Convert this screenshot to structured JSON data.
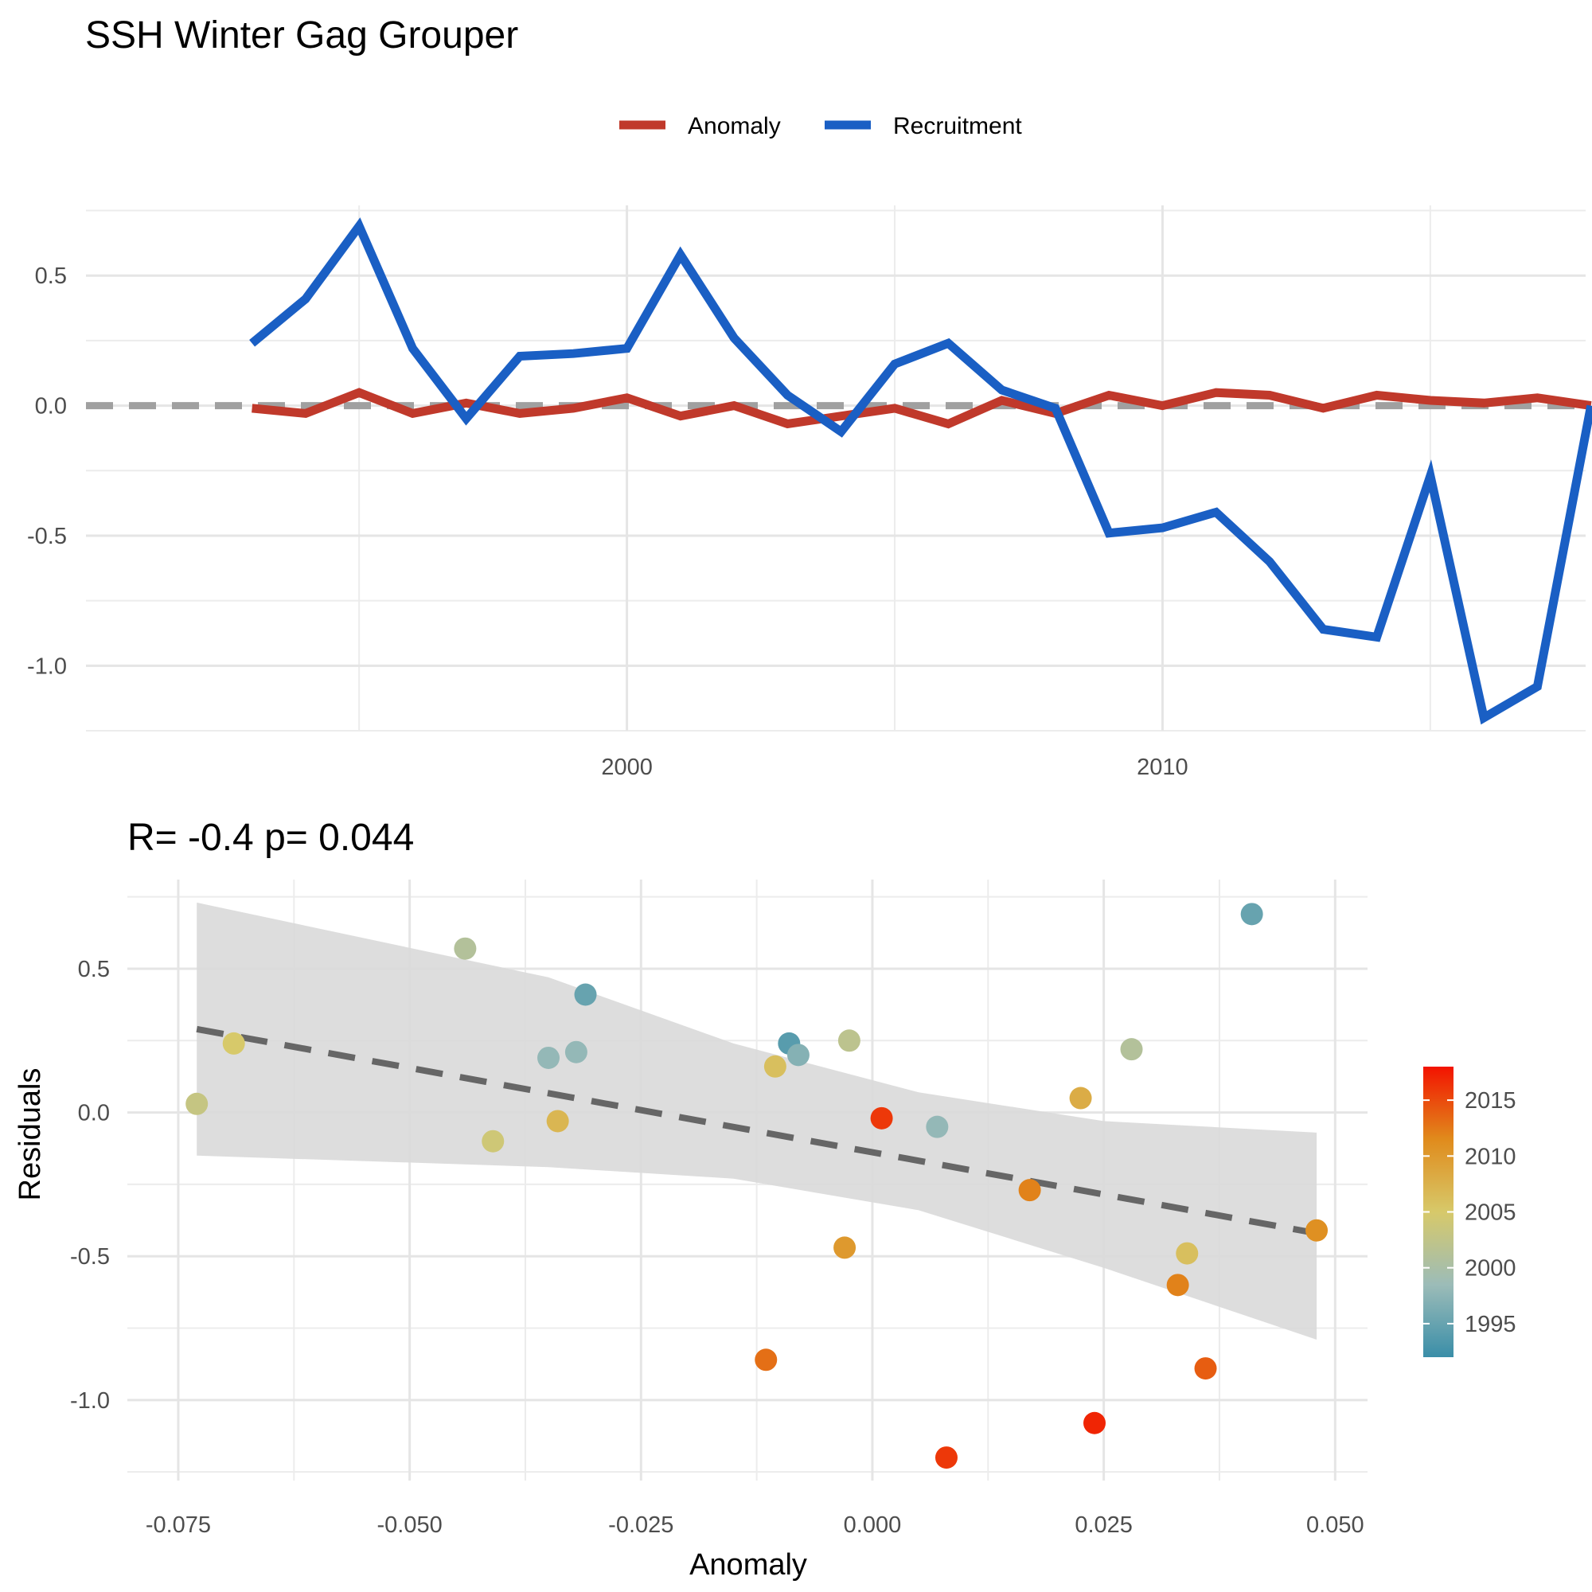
{
  "title": "SSH Winter Gag Grouper",
  "colors": {
    "anomaly": "#c0392b",
    "recruitment": "#1a5fc4",
    "zero_line": "#a0a0a0",
    "fit_line": "#666666",
    "ribbon": "#d9d9d9"
  },
  "chart_data": [
    {
      "type": "line",
      "legend": {
        "position": "top",
        "labels": [
          "Anomaly",
          "Recruitment"
        ]
      },
      "grid": true,
      "xlim": [
        1989.9,
        2017.9
      ],
      "ylim": [
        -1.25,
        0.77
      ],
      "x_ticks": [
        2000,
        2010
      ],
      "x_tick_labels": [
        "2000",
        "2010"
      ],
      "y_ticks": [
        0.5,
        0.0,
        -0.5,
        -1.0
      ],
      "y_tick_labels": [
        "0.5",
        "0.0",
        "-0.5",
        "-1.0"
      ],
      "zero_line": 0,
      "series": [
        {
          "name": "Anomaly",
          "x": [
            1993,
            1994,
            1995,
            1996,
            1997,
            1998,
            1999,
            2000,
            2001,
            2002,
            2003,
            2004,
            2005,
            2006,
            2007,
            2008,
            2009,
            2010,
            2011,
            2012,
            2013,
            2014,
            2015,
            2016,
            2017,
            2018
          ],
          "y": [
            -0.01,
            -0.03,
            0.05,
            -0.03,
            0.01,
            -0.03,
            -0.01,
            0.03,
            -0.04,
            0.0,
            -0.07,
            -0.04,
            -0.01,
            -0.07,
            0.02,
            -0.03,
            0.04,
            0.0,
            0.05,
            0.04,
            -0.01,
            0.04,
            0.02,
            0.01,
            0.03,
            0.0
          ]
        },
        {
          "name": "Recruitment",
          "x": [
            1993,
            1994,
            1995,
            1996,
            1997,
            1998,
            1999,
            2000,
            2001,
            2002,
            2003,
            2004,
            2005,
            2006,
            2007,
            2008,
            2009,
            2010,
            2011,
            2012,
            2013,
            2014,
            2015,
            2016,
            2017,
            2018
          ],
          "y": [
            0.24,
            0.41,
            0.69,
            0.22,
            -0.05,
            0.19,
            0.2,
            0.22,
            0.58,
            0.26,
            0.04,
            -0.1,
            0.16,
            0.24,
            0.06,
            -0.01,
            -0.49,
            -0.47,
            -0.41,
            -0.6,
            -0.86,
            -0.89,
            -0.27,
            -1.2,
            -1.08,
            0.0
          ]
        }
      ]
    },
    {
      "type": "scatter",
      "title": "R= -0.4  p= 0.044",
      "xlabel": "Anomaly",
      "ylabel": "Residuals",
      "grid": true,
      "xlim": [
        -0.0805,
        0.0535
      ],
      "ylim": [
        -1.28,
        0.81
      ],
      "x_ticks": [
        -0.075,
        -0.05,
        -0.025,
        0.0,
        0.025,
        0.05
      ],
      "x_tick_labels": [
        "-0.075",
        "-0.050",
        "-0.025",
        "0.000",
        "0.025",
        "0.050"
      ],
      "y_ticks": [
        0.5,
        0.0,
        -0.5,
        -1.0
      ],
      "y_tick_labels": [
        "0.5",
        "0.0",
        "-0.5",
        "-1.0"
      ],
      "points": [
        {
          "x": 0.041,
          "y": 0.69,
          "year": 1995
        },
        {
          "x": -0.031,
          "y": 0.41,
          "year": 1995
        },
        {
          "x": -0.009,
          "y": 0.24,
          "year": 1994
        },
        {
          "x": -0.032,
          "y": 0.21,
          "year": 1998
        },
        {
          "x": -0.035,
          "y": 0.19,
          "year": 1998
        },
        {
          "x": -0.008,
          "y": 0.2,
          "year": 1997
        },
        {
          "x": 0.007,
          "y": -0.05,
          "year": 1998
        },
        {
          "x": -0.044,
          "y": 0.57,
          "year": 2001
        },
        {
          "x": -0.0025,
          "y": 0.25,
          "year": 2002
        },
        {
          "x": 0.028,
          "y": 0.22,
          "year": 2001
        },
        {
          "x": -0.073,
          "y": 0.03,
          "year": 2003
        },
        {
          "x": -0.069,
          "y": 0.24,
          "year": 2005
        },
        {
          "x": -0.041,
          "y": -0.1,
          "year": 2004
        },
        {
          "x": -0.0105,
          "y": 0.16,
          "year": 2006
        },
        {
          "x": -0.034,
          "y": -0.03,
          "year": 2007
        },
        {
          "x": 0.034,
          "y": -0.49,
          "year": 2006
        },
        {
          "x": 0.0225,
          "y": 0.05,
          "year": 2008
        },
        {
          "x": -0.003,
          "y": -0.47,
          "year": 2010
        },
        {
          "x": 0.048,
          "y": -0.41,
          "year": 2011
        },
        {
          "x": 0.033,
          "y": -0.6,
          "year": 2012
        },
        {
          "x": 0.017,
          "y": -0.27,
          "year": 2012
        },
        {
          "x": 0.001,
          "y": -0.02,
          "year": 2016
        },
        {
          "x": -0.0115,
          "y": -0.86,
          "year": 2013
        },
        {
          "x": 0.036,
          "y": -0.89,
          "year": 2014
        },
        {
          "x": 0.024,
          "y": -1.08,
          "year": 2017
        },
        {
          "x": 0.008,
          "y": -1.2,
          "year": 2016
        }
      ],
      "fit": {
        "x": [
          -0.073,
          0.048
        ],
        "y": [
          0.29,
          -0.42
        ]
      },
      "ribbon": {
        "x": [
          -0.073,
          0.048
        ],
        "upper": [
          0.73,
          -0.07
        ],
        "lower": [
          -0.15,
          -0.79
        ]
      },
      "colorbar": {
        "title": "",
        "ticks": [
          1995,
          2000,
          2005,
          2010,
          2015
        ],
        "tick_labels": [
          "1995",
          "2000",
          "2005",
          "2010",
          "2015"
        ],
        "range": [
          1992,
          2018
        ],
        "gradient": [
          "#3a8ea8",
          "#9cbcb8",
          "#d7c96a",
          "#e08b1c",
          "#f31300"
        ]
      }
    }
  ]
}
